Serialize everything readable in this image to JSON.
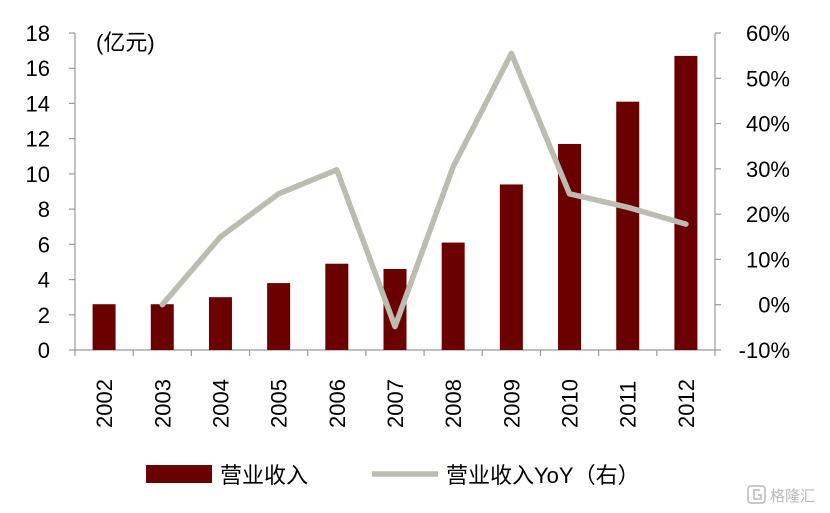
{
  "chart_data": {
    "type": "bar+line",
    "categories": [
      "2002",
      "2003",
      "2004",
      "2005",
      "2006",
      "2007",
      "2008",
      "2009",
      "2010",
      "2011",
      "2012"
    ],
    "series": [
      {
        "name": "营业收入",
        "type": "bar",
        "axis": "left",
        "color": "#6b0000",
        "values": [
          2.6,
          2.6,
          3.0,
          3.8,
          4.9,
          4.6,
          6.1,
          9.4,
          11.7,
          14.1,
          16.7
        ]
      },
      {
        "name": "营业收入YoY（右）",
        "type": "line",
        "axis": "right",
        "color": "#bcbcb0",
        "values": [
          null,
          0.0,
          15.0,
          24.5,
          29.8,
          -4.8,
          30.5,
          55.5,
          24.5,
          21.5,
          17.8
        ]
      }
    ],
    "y_left": {
      "unit": "(亿元)",
      "ylim": [
        0,
        18
      ],
      "ticks": [
        "0",
        "2",
        "4",
        "6",
        "8",
        "10",
        "12",
        "14",
        "16",
        "18"
      ]
    },
    "y_right": {
      "ylim": [
        -10,
        60
      ],
      "ticks": [
        "-10%",
        "0%",
        "10%",
        "20%",
        "30%",
        "40%",
        "50%",
        "60%"
      ]
    },
    "legend_position": "bottom",
    "grid": false
  },
  "watermark": {
    "text": "格隆汇",
    "icon": "gelonghui-logo-icon"
  }
}
